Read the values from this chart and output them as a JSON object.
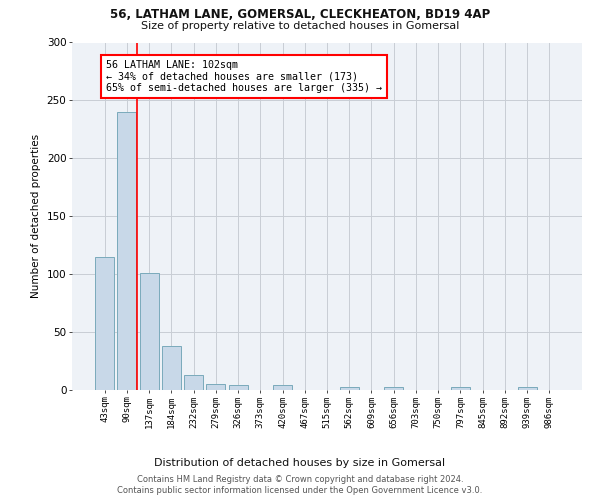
{
  "title_line1": "56, LATHAM LANE, GOMERSAL, CLECKHEATON, BD19 4AP",
  "title_line2": "Size of property relative to detached houses in Gomersal",
  "xlabel": "Distribution of detached houses by size in Gomersal",
  "ylabel": "Number of detached properties",
  "bar_color": "#c8d8e8",
  "bar_edge_color": "#7aaabb",
  "categories": [
    "43sqm",
    "90sqm",
    "137sqm",
    "184sqm",
    "232sqm",
    "279sqm",
    "326sqm",
    "373sqm",
    "420sqm",
    "467sqm",
    "515sqm",
    "562sqm",
    "609sqm",
    "656sqm",
    "703sqm",
    "750sqm",
    "797sqm",
    "845sqm",
    "892sqm",
    "939sqm",
    "986sqm"
  ],
  "values": [
    115,
    240,
    101,
    38,
    13,
    5,
    4,
    0,
    4,
    0,
    0,
    3,
    0,
    3,
    0,
    0,
    3,
    0,
    0,
    3,
    0
  ],
  "ylim": [
    0,
    300
  ],
  "yticks": [
    0,
    50,
    100,
    150,
    200,
    250,
    300
  ],
  "red_line_x": 1.45,
  "annotation_text": "56 LATHAM LANE: 102sqm\n← 34% of detached houses are smaller (173)\n65% of semi-detached houses are larger (335) →",
  "footer_line1": "Contains HM Land Registry data © Crown copyright and database right 2024.",
  "footer_line2": "Contains public sector information licensed under the Open Government Licence v3.0.",
  "background_color": "#eef2f7",
  "grid_color": "#c8cdd4"
}
